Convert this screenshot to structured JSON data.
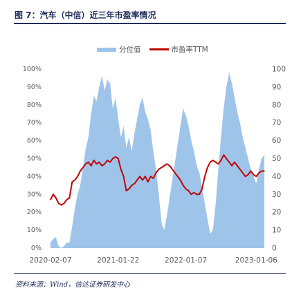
{
  "title": "图 7：汽车（中信）近三年市盈率情况",
  "source": "资料来源：Wind，信达证券研发中心",
  "colors": {
    "area": "#9fc4e9",
    "line": "#c00000",
    "header": "#1f2d5a",
    "axis_text": "#595959"
  },
  "chart_data": {
    "type": "area",
    "legend_position": "top-center",
    "grid": false,
    "x_ticks": [
      "2020-02-07",
      "2021-01-22",
      "2022-01-07",
      "2023-01-06"
    ],
    "left_axis": {
      "ticks": [
        "0%",
        "10%",
        "20%",
        "30%",
        "40%",
        "50%",
        "60%",
        "70%",
        "80%",
        "90%",
        "100%"
      ],
      "range": [
        0,
        100
      ]
    },
    "right_axis": {
      "ticks": [
        "0",
        "10",
        "20",
        "30",
        "40",
        "50",
        "60",
        "70",
        "80",
        "90",
        "100"
      ],
      "range": [
        0,
        100
      ]
    },
    "x_range": [
      "2020-02-07",
      "2023-02-17"
    ],
    "series": [
      {
        "name": "分位值",
        "kind": "area",
        "axis": "left",
        "unit": "%",
        "points": [
          [
            "2020-02-07",
            3
          ],
          [
            "2020-02-21",
            5
          ],
          [
            "2020-03-06",
            6
          ],
          [
            "2020-03-20",
            1
          ],
          [
            "2020-04-03",
            0
          ],
          [
            "2020-04-17",
            1
          ],
          [
            "2020-05-01",
            3
          ],
          [
            "2020-05-15",
            3
          ],
          [
            "2020-05-29",
            12
          ],
          [
            "2020-06-12",
            22
          ],
          [
            "2020-06-26",
            30
          ],
          [
            "2020-07-10",
            35
          ],
          [
            "2020-07-24",
            45
          ],
          [
            "2020-08-07",
            55
          ],
          [
            "2020-08-21",
            62
          ],
          [
            "2020-09-04",
            75
          ],
          [
            "2020-09-18",
            85
          ],
          [
            "2020-10-02",
            82
          ],
          [
            "2020-10-16",
            90
          ],
          [
            "2020-10-30",
            96
          ],
          [
            "2020-11-13",
            88
          ],
          [
            "2020-11-27",
            94
          ],
          [
            "2020-12-11",
            92
          ],
          [
            "2020-12-25",
            78
          ],
          [
            "2021-01-08",
            84
          ],
          [
            "2021-01-22",
            72
          ],
          [
            "2021-02-05",
            62
          ],
          [
            "2021-02-19",
            68
          ],
          [
            "2021-03-05",
            56
          ],
          [
            "2021-03-19",
            62
          ],
          [
            "2021-04-02",
            54
          ],
          [
            "2021-04-16",
            64
          ],
          [
            "2021-04-30",
            72
          ],
          [
            "2021-05-14",
            80
          ],
          [
            "2021-05-28",
            84
          ],
          [
            "2021-06-11",
            76
          ],
          [
            "2021-06-25",
            72
          ],
          [
            "2021-07-09",
            66
          ],
          [
            "2021-07-23",
            54
          ],
          [
            "2021-08-06",
            44
          ],
          [
            "2021-08-20",
            30
          ],
          [
            "2021-09-03",
            14
          ],
          [
            "2021-09-17",
            10
          ],
          [
            "2021-10-01",
            18
          ],
          [
            "2021-10-15",
            28
          ],
          [
            "2021-10-29",
            38
          ],
          [
            "2021-11-12",
            48
          ],
          [
            "2021-11-26",
            58
          ],
          [
            "2021-12-10",
            68
          ],
          [
            "2021-12-24",
            78
          ],
          [
            "2022-01-07",
            74
          ],
          [
            "2022-01-21",
            68
          ],
          [
            "2022-02-04",
            60
          ],
          [
            "2022-02-18",
            54
          ],
          [
            "2022-03-04",
            46
          ],
          [
            "2022-03-18",
            42
          ],
          [
            "2022-04-01",
            34
          ],
          [
            "2022-04-15",
            25
          ],
          [
            "2022-04-29",
            16
          ],
          [
            "2022-05-13",
            8
          ],
          [
            "2022-05-27",
            10
          ],
          [
            "2022-06-10",
            24
          ],
          [
            "2022-06-24",
            44
          ],
          [
            "2022-07-08",
            62
          ],
          [
            "2022-07-22",
            78
          ],
          [
            "2022-08-05",
            90
          ],
          [
            "2022-08-19",
            98
          ],
          [
            "2022-09-02",
            92
          ],
          [
            "2022-09-16",
            84
          ],
          [
            "2022-09-30",
            76
          ],
          [
            "2022-10-14",
            70
          ],
          [
            "2022-10-28",
            62
          ],
          [
            "2022-11-11",
            56
          ],
          [
            "2022-11-25",
            50
          ],
          [
            "2022-12-09",
            44
          ],
          [
            "2022-12-23",
            40
          ],
          [
            "2023-01-06",
            36
          ],
          [
            "2023-01-20",
            44
          ],
          [
            "2023-02-03",
            50
          ],
          [
            "2023-02-17",
            52
          ]
        ]
      },
      {
        "name": "市盈率TTM",
        "kind": "line",
        "axis": "right",
        "points": [
          [
            "2020-02-07",
            27
          ],
          [
            "2020-02-21",
            30
          ],
          [
            "2020-03-06",
            28
          ],
          [
            "2020-03-20",
            25
          ],
          [
            "2020-04-03",
            24
          ],
          [
            "2020-04-17",
            25
          ],
          [
            "2020-05-01",
            27
          ],
          [
            "2020-05-15",
            28
          ],
          [
            "2020-05-29",
            37
          ],
          [
            "2020-06-12",
            38
          ],
          [
            "2020-06-26",
            40
          ],
          [
            "2020-07-10",
            43
          ],
          [
            "2020-07-24",
            45
          ],
          [
            "2020-08-07",
            47
          ],
          [
            "2020-08-21",
            48
          ],
          [
            "2020-09-04",
            46
          ],
          [
            "2020-09-18",
            49
          ],
          [
            "2020-10-02",
            47
          ],
          [
            "2020-10-16",
            48
          ],
          [
            "2020-10-30",
            46
          ],
          [
            "2020-11-13",
            47
          ],
          [
            "2020-11-27",
            49
          ],
          [
            "2020-12-11",
            48
          ],
          [
            "2020-12-25",
            50
          ],
          [
            "2021-01-08",
            51
          ],
          [
            "2021-01-22",
            50
          ],
          [
            "2021-02-05",
            44
          ],
          [
            "2021-02-19",
            40
          ],
          [
            "2021-03-05",
            32
          ],
          [
            "2021-03-19",
            33
          ],
          [
            "2021-04-02",
            35
          ],
          [
            "2021-04-16",
            36
          ],
          [
            "2021-04-30",
            38
          ],
          [
            "2021-05-14",
            40
          ],
          [
            "2021-05-28",
            38
          ],
          [
            "2021-06-11",
            40
          ],
          [
            "2021-06-25",
            37
          ],
          [
            "2021-07-09",
            40
          ],
          [
            "2021-07-23",
            39
          ],
          [
            "2021-08-06",
            42
          ],
          [
            "2021-08-20",
            44
          ],
          [
            "2021-09-03",
            45
          ],
          [
            "2021-09-17",
            46
          ],
          [
            "2021-10-01",
            47
          ],
          [
            "2021-10-15",
            46
          ],
          [
            "2021-10-29",
            44
          ],
          [
            "2021-11-12",
            42
          ],
          [
            "2021-11-26",
            40
          ],
          [
            "2021-12-10",
            38
          ],
          [
            "2021-12-24",
            35
          ],
          [
            "2022-01-07",
            33
          ],
          [
            "2022-01-21",
            32
          ],
          [
            "2022-02-04",
            30
          ],
          [
            "2022-02-18",
            31
          ],
          [
            "2022-03-04",
            30
          ],
          [
            "2022-03-18",
            30
          ],
          [
            "2022-04-01",
            33
          ],
          [
            "2022-04-15",
            40
          ],
          [
            "2022-04-29",
            45
          ],
          [
            "2022-05-13",
            48
          ],
          [
            "2022-05-27",
            49
          ],
          [
            "2022-06-10",
            48
          ],
          [
            "2022-06-24",
            47
          ],
          [
            "2022-07-08",
            49
          ],
          [
            "2022-07-22",
            52
          ],
          [
            "2022-08-05",
            50
          ],
          [
            "2022-08-19",
            48
          ],
          [
            "2022-09-02",
            46
          ],
          [
            "2022-09-16",
            48
          ],
          [
            "2022-09-30",
            46
          ],
          [
            "2022-10-14",
            44
          ],
          [
            "2022-10-28",
            42
          ],
          [
            "2022-11-11",
            40
          ],
          [
            "2022-11-25",
            41
          ],
          [
            "2022-12-09",
            43
          ],
          [
            "2022-12-23",
            41
          ],
          [
            "2023-01-06",
            40
          ],
          [
            "2023-01-20",
            42
          ],
          [
            "2023-02-03",
            43
          ],
          [
            "2023-02-17",
            43
          ]
        ]
      }
    ]
  }
}
